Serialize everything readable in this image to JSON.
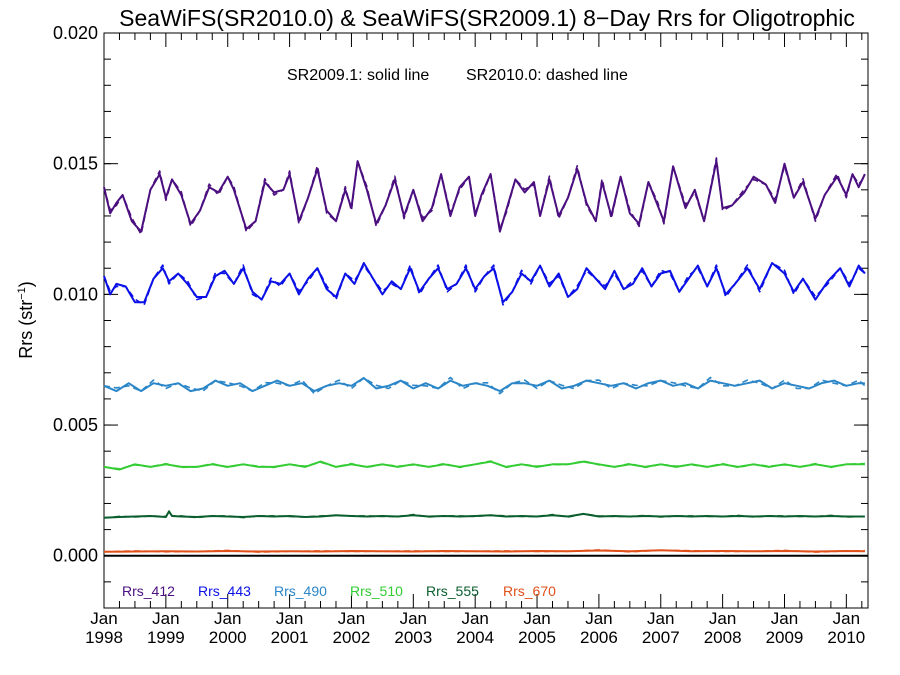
{
  "chart_data": {
    "type": "line",
    "title": "SeaWiFS(SR2010.0) & SeaWiFS(SR2009.1) 8−Day Rrs for Oligotrophic",
    "subtitle_solid": "SR2009.1: solid line",
    "subtitle_dashed": "SR2010.0: dashed line",
    "ylabel": "Rrs (str",
    "ylabel_sup": "−1",
    "ylabel_close": ")",
    "xlim": [
      1998.0,
      2010.35
    ],
    "ylim": [
      -0.002,
      0.02
    ],
    "yticks": [
      "0.000",
      "0.005",
      "0.010",
      "0.015",
      "0.020"
    ],
    "ytick_values": [
      0.0,
      0.005,
      0.01,
      0.015,
      0.02
    ],
    "xticks": [
      {
        "month": "Jan",
        "year": "1998",
        "x": 1998
      },
      {
        "month": "Jan",
        "year": "1999",
        "x": 1999
      },
      {
        "month": "Jan",
        "year": "2000",
        "x": 2000
      },
      {
        "month": "Jan",
        "year": "2001",
        "x": 2001
      },
      {
        "month": "Jan",
        "year": "2002",
        "x": 2002
      },
      {
        "month": "Jan",
        "year": "2003",
        "x": 2003
      },
      {
        "month": "Jan",
        "year": "2004",
        "x": 2004
      },
      {
        "month": "Jan",
        "year": "2005",
        "x": 2005
      },
      {
        "month": "Jan",
        "year": "2006",
        "x": 2006
      },
      {
        "month": "Jan",
        "year": "2007",
        "x": 2007
      },
      {
        "month": "Jan",
        "year": "2008",
        "x": 2008
      },
      {
        "month": "Jan",
        "year": "2009",
        "x": 2009
      },
      {
        "month": "Jan",
        "year": "2010",
        "x": 2010
      }
    ],
    "zero_line": 0.0,
    "series": [
      {
        "name": "Rrs_412",
        "color": "#4b0f80",
        "x": [
          1998.0,
          1998.1,
          1998.2,
          1998.3,
          1998.45,
          1998.6,
          1998.75,
          1998.9,
          1999.0,
          1999.1,
          1999.25,
          1999.4,
          1999.55,
          1999.7,
          1999.85,
          2000.0,
          2000.1,
          2000.3,
          2000.45,
          2000.6,
          2000.75,
          2000.9,
          2001.0,
          2001.15,
          2001.3,
          2001.45,
          2001.6,
          2001.75,
          2001.9,
          2002.0,
          2002.1,
          2002.25,
          2002.4,
          2002.55,
          2002.7,
          2002.85,
          2003.0,
          2003.15,
          2003.3,
          2003.45,
          2003.6,
          2003.75,
          2003.9,
          2004.0,
          2004.1,
          2004.25,
          2004.4,
          2004.5,
          2004.65,
          2004.8,
          2004.95,
          2005.05,
          2005.2,
          2005.35,
          2005.5,
          2005.65,
          2005.8,
          2005.95,
          2006.05,
          2006.2,
          2006.35,
          2006.5,
          2006.65,
          2006.8,
          2006.95,
          2007.05,
          2007.2,
          2007.4,
          2007.55,
          2007.7,
          2007.9,
          2008.0,
          2008.15,
          2008.35,
          2008.5,
          2008.7,
          2008.85,
          2009.0,
          2009.15,
          2009.3,
          2009.5,
          2009.65,
          2009.85,
          2010.0,
          2010.1,
          2010.2,
          2010.3
        ],
        "y": [
          0.0141,
          0.0131,
          0.0135,
          0.0138,
          0.0128,
          0.0124,
          0.014,
          0.0146,
          0.0137,
          0.0144,
          0.0138,
          0.0127,
          0.0132,
          0.0141,
          0.0139,
          0.0145,
          0.014,
          0.0125,
          0.0128,
          0.0143,
          0.0139,
          0.014,
          0.0146,
          0.0128,
          0.0137,
          0.0148,
          0.0132,
          0.0128,
          0.014,
          0.0133,
          0.0151,
          0.014,
          0.0127,
          0.0134,
          0.0144,
          0.013,
          0.014,
          0.0128,
          0.0133,
          0.0146,
          0.013,
          0.0141,
          0.0145,
          0.013,
          0.0138,
          0.0146,
          0.0124,
          0.0132,
          0.0144,
          0.0139,
          0.0143,
          0.013,
          0.0144,
          0.013,
          0.0137,
          0.0148,
          0.0135,
          0.0128,
          0.0143,
          0.013,
          0.0145,
          0.0131,
          0.0127,
          0.0143,
          0.0134,
          0.0128,
          0.0149,
          0.0133,
          0.014,
          0.0128,
          0.0151,
          0.0133,
          0.0134,
          0.0139,
          0.0145,
          0.0142,
          0.0135,
          0.015,
          0.0137,
          0.0143,
          0.0129,
          0.0138,
          0.0145,
          0.0138,
          0.0146,
          0.0141,
          0.0146
        ]
      },
      {
        "name": "Rrs_443",
        "color": "#0a10e6",
        "x": [
          1998.0,
          1998.1,
          1998.2,
          1998.35,
          1998.5,
          1998.65,
          1998.8,
          1998.95,
          1999.05,
          1999.2,
          1999.35,
          1999.5,
          1999.65,
          1999.8,
          1999.95,
          2000.1,
          2000.25,
          2000.4,
          2000.55,
          2000.7,
          2000.85,
          2001.0,
          2001.15,
          2001.3,
          2001.45,
          2001.6,
          2001.75,
          2001.9,
          2002.05,
          2002.2,
          2002.35,
          2002.5,
          2002.65,
          2002.8,
          2002.95,
          2003.1,
          2003.25,
          2003.4,
          2003.55,
          2003.7,
          2003.85,
          2004.0,
          2004.15,
          2004.3,
          2004.45,
          2004.6,
          2004.75,
          2004.9,
          2005.05,
          2005.2,
          2005.35,
          2005.5,
          2005.65,
          2005.8,
          2005.95,
          2006.1,
          2006.25,
          2006.4,
          2006.55,
          2006.7,
          2006.85,
          2007.0,
          2007.15,
          2007.3,
          2007.45,
          2007.6,
          2007.75,
          2007.9,
          2008.05,
          2008.2,
          2008.4,
          2008.6,
          2008.8,
          2009.0,
          2009.15,
          2009.3,
          2009.5,
          2009.7,
          2009.9,
          2010.05,
          2010.2,
          2010.3
        ],
        "y": [
          0.0107,
          0.01,
          0.0104,
          0.0103,
          0.0097,
          0.0097,
          0.0106,
          0.011,
          0.0105,
          0.0108,
          0.0104,
          0.0099,
          0.0099,
          0.0107,
          0.0109,
          0.0104,
          0.011,
          0.0101,
          0.0098,
          0.0105,
          0.0104,
          0.0108,
          0.01,
          0.0106,
          0.011,
          0.0102,
          0.0099,
          0.0108,
          0.0104,
          0.0112,
          0.0106,
          0.01,
          0.0105,
          0.0102,
          0.011,
          0.0101,
          0.0106,
          0.011,
          0.0102,
          0.0104,
          0.011,
          0.0102,
          0.0107,
          0.011,
          0.0097,
          0.0101,
          0.0108,
          0.0105,
          0.0111,
          0.0103,
          0.0108,
          0.0099,
          0.0102,
          0.011,
          0.0106,
          0.0102,
          0.0109,
          0.0102,
          0.0104,
          0.011,
          0.0103,
          0.0108,
          0.0109,
          0.0101,
          0.0106,
          0.0111,
          0.0103,
          0.011,
          0.01,
          0.0104,
          0.011,
          0.0102,
          0.0112,
          0.0108,
          0.0101,
          0.0106,
          0.0098,
          0.0105,
          0.011,
          0.0103,
          0.0111,
          0.0108
        ]
      },
      {
        "name": "Rrs_490",
        "color": "#2b86c8",
        "x": [
          1998.0,
          1998.2,
          1998.4,
          1998.6,
          1998.8,
          1999.0,
          1999.2,
          1999.4,
          1999.6,
          1999.8,
          2000.0,
          2000.2,
          2000.4,
          2000.6,
          2000.8,
          2001.0,
          2001.2,
          2001.4,
          2001.6,
          2001.8,
          2002.0,
          2002.2,
          2002.4,
          2002.6,
          2002.8,
          2003.0,
          2003.2,
          2003.4,
          2003.6,
          2003.8,
          2004.0,
          2004.2,
          2004.4,
          2004.6,
          2004.8,
          2005.0,
          2005.2,
          2005.4,
          2005.6,
          2005.8,
          2006.0,
          2006.2,
          2006.4,
          2006.6,
          2006.8,
          2007.0,
          2007.2,
          2007.4,
          2007.6,
          2007.8,
          2008.0,
          2008.2,
          2008.4,
          2008.6,
          2008.8,
          2009.0,
          2009.2,
          2009.4,
          2009.6,
          2009.8,
          2010.0,
          2010.2,
          2010.3
        ],
        "y": [
          0.0065,
          0.0063,
          0.0066,
          0.0063,
          0.0066,
          0.0065,
          0.0066,
          0.0063,
          0.0064,
          0.0067,
          0.0065,
          0.0066,
          0.0063,
          0.0065,
          0.0067,
          0.0065,
          0.0066,
          0.0063,
          0.0065,
          0.0066,
          0.0065,
          0.0068,
          0.0064,
          0.0065,
          0.0067,
          0.0064,
          0.0066,
          0.0064,
          0.0067,
          0.0065,
          0.0066,
          0.0065,
          0.0063,
          0.0066,
          0.0066,
          0.0065,
          0.0067,
          0.0064,
          0.0065,
          0.0067,
          0.0066,
          0.0065,
          0.0066,
          0.0064,
          0.0066,
          0.0067,
          0.0065,
          0.0066,
          0.0064,
          0.0067,
          0.0066,
          0.0065,
          0.0066,
          0.0067,
          0.0064,
          0.0066,
          0.0065,
          0.0064,
          0.0066,
          0.0067,
          0.0065,
          0.0066,
          0.0066
        ]
      },
      {
        "name": "Rrs_510",
        "color": "#33cc33",
        "x": [
          1998.0,
          1998.25,
          1998.5,
          1998.75,
          1999.0,
          1999.25,
          1999.5,
          1999.75,
          2000.0,
          2000.25,
          2000.5,
          2000.75,
          2001.0,
          2001.25,
          2001.5,
          2001.75,
          2002.0,
          2002.25,
          2002.5,
          2002.75,
          2003.0,
          2003.25,
          2003.5,
          2003.75,
          2004.0,
          2004.25,
          2004.5,
          2004.75,
          2005.0,
          2005.25,
          2005.5,
          2005.75,
          2006.0,
          2006.25,
          2006.5,
          2006.75,
          2007.0,
          2007.25,
          2007.5,
          2007.75,
          2008.0,
          2008.25,
          2008.5,
          2008.75,
          2009.0,
          2009.25,
          2009.5,
          2009.75,
          2010.0,
          2010.3
        ],
        "y": [
          0.0034,
          0.0033,
          0.0035,
          0.0034,
          0.0035,
          0.0034,
          0.0034,
          0.0035,
          0.0034,
          0.0035,
          0.0034,
          0.0034,
          0.0035,
          0.0034,
          0.0036,
          0.0034,
          0.0035,
          0.0034,
          0.0035,
          0.0034,
          0.0035,
          0.0034,
          0.0035,
          0.0034,
          0.0035,
          0.0036,
          0.0034,
          0.0035,
          0.0034,
          0.0035,
          0.0035,
          0.0036,
          0.0035,
          0.0034,
          0.0035,
          0.0034,
          0.0035,
          0.0034,
          0.0035,
          0.0034,
          0.0035,
          0.0034,
          0.0035,
          0.0034,
          0.0035,
          0.0034,
          0.0035,
          0.0034,
          0.0035,
          0.0035
        ]
      },
      {
        "name": "Rrs_555",
        "color": "#0b5e2e",
        "x": [
          1998.0,
          1998.25,
          1998.5,
          1998.75,
          1999.0,
          1999.05,
          1999.1,
          1999.25,
          1999.5,
          1999.75,
          2000.0,
          2000.25,
          2000.5,
          2000.75,
          2001.0,
          2001.25,
          2001.5,
          2001.75,
          2002.0,
          2002.25,
          2002.5,
          2002.75,
          2003.0,
          2003.25,
          2003.5,
          2003.75,
          2004.0,
          2004.25,
          2004.5,
          2004.75,
          2005.0,
          2005.25,
          2005.5,
          2005.75,
          2006.0,
          2006.25,
          2006.5,
          2006.75,
          2007.0,
          2007.25,
          2007.5,
          2007.75,
          2008.0,
          2008.25,
          2008.5,
          2008.75,
          2009.0,
          2009.25,
          2009.5,
          2009.75,
          2010.0,
          2010.3
        ],
        "y": [
          0.00145,
          0.00148,
          0.0015,
          0.00152,
          0.00148,
          0.0017,
          0.00152,
          0.0015,
          0.00148,
          0.00152,
          0.0015,
          0.00148,
          0.00152,
          0.0015,
          0.00152,
          0.00148,
          0.0015,
          0.00155,
          0.00152,
          0.0015,
          0.00152,
          0.0015,
          0.00155,
          0.0015,
          0.00152,
          0.0015,
          0.00152,
          0.00155,
          0.0015,
          0.00152,
          0.0015,
          0.00155,
          0.0015,
          0.0016,
          0.0015,
          0.00152,
          0.0015,
          0.00152,
          0.0015,
          0.00152,
          0.0015,
          0.00152,
          0.0015,
          0.00152,
          0.0015,
          0.00152,
          0.0015,
          0.00152,
          0.0015,
          0.00152,
          0.0015,
          0.0015
        ]
      },
      {
        "name": "Rrs_670",
        "color": "#e0501a",
        "x": [
          1998.0,
          1998.5,
          1999.0,
          1999.5,
          2000.0,
          2000.5,
          2001.0,
          2001.5,
          2002.0,
          2002.5,
          2003.0,
          2003.5,
          2004.0,
          2004.5,
          2005.0,
          2005.5,
          2006.0,
          2006.5,
          2007.0,
          2007.5,
          2008.0,
          2008.5,
          2009.0,
          2009.5,
          2010.0,
          2010.3
        ],
        "y": [
          0.00015,
          0.00016,
          0.00017,
          0.00016,
          0.00018,
          0.00016,
          0.00017,
          0.00016,
          0.00018,
          0.00017,
          0.00016,
          0.00018,
          0.00017,
          0.00016,
          0.00018,
          0.00017,
          0.0002,
          0.00017,
          0.00021,
          0.00017,
          0.00018,
          0.00017,
          0.00018,
          0.00016,
          0.00018,
          0.00017
        ]
      }
    ]
  }
}
